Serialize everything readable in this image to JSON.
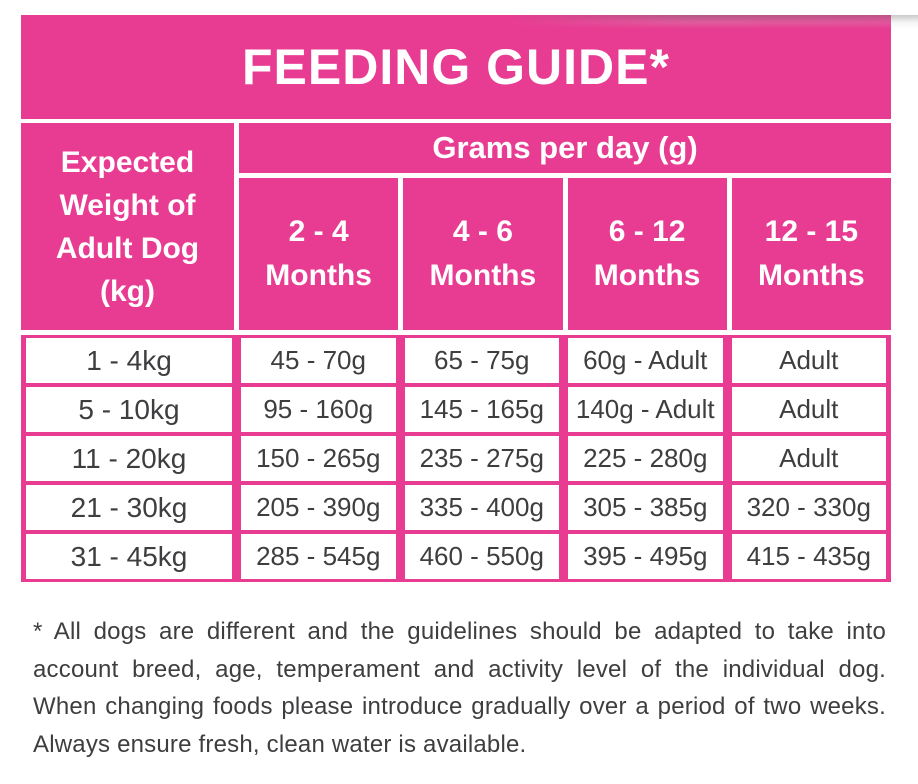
{
  "title": "FEEDING GUIDE*",
  "colors": {
    "pink": "#E83C92",
    "header_text": "#FFFFFF",
    "body_text": "#3E3E40"
  },
  "table": {
    "weight_header": "Expected\nWeight of\nAdult Dog\n(kg)",
    "grams_header": "Grams per day (g)",
    "month_columns": [
      "2 - 4\nMonths",
      "4 - 6\nMonths",
      "6 - 12\nMonths",
      "12 - 15\nMonths"
    ],
    "rows": [
      {
        "weight": "1 - 4kg",
        "values": [
          "45 - 70g",
          "65 - 75g",
          "60g - Adult",
          "Adult"
        ]
      },
      {
        "weight": "5 - 10kg",
        "values": [
          "95 - 160g",
          "145 - 165g",
          "140g - Adult",
          "Adult"
        ]
      },
      {
        "weight": "11 - 20kg",
        "values": [
          "150 - 265g",
          "235 - 275g",
          "225 - 280g",
          "Adult"
        ]
      },
      {
        "weight": "21 - 30kg",
        "values": [
          "205 - 390g",
          "335 - 400g",
          "305 - 385g",
          "320 - 330g"
        ]
      },
      {
        "weight": "31 - 45kg",
        "values": [
          "285 - 545g",
          "460 - 550g",
          "395 - 495g",
          "415 - 435g"
        ]
      }
    ]
  },
  "footnote": "* All dogs are different and the guidelines should be adapted to take into account breed, age, temperament and activity level of the individual dog. When changing foods please introduce gradually over a period of two weeks. Always ensure fresh, clean water is available."
}
